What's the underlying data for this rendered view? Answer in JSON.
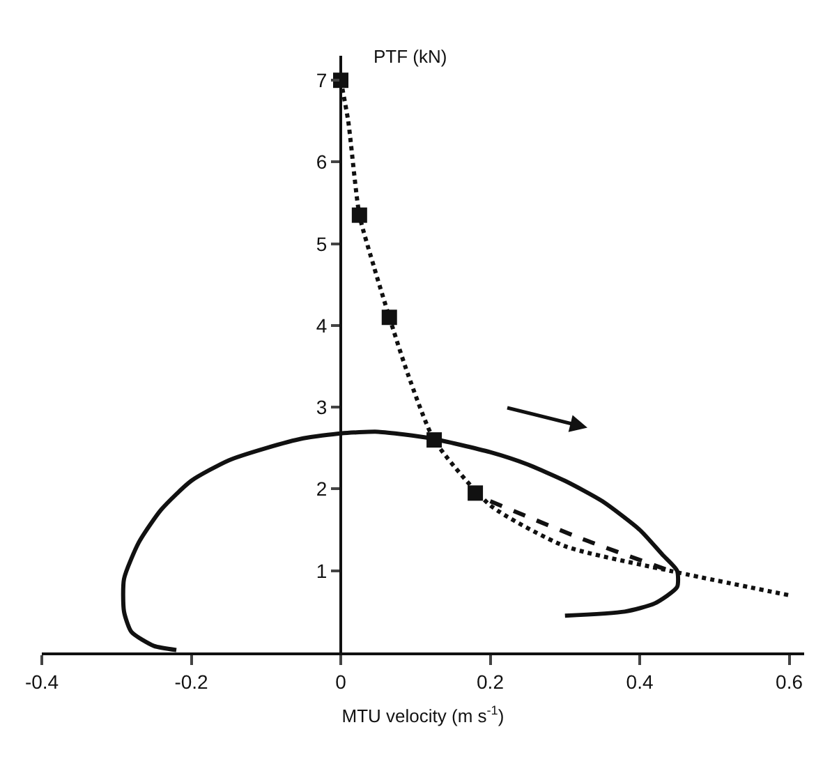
{
  "chart_data": {
    "type": "line",
    "xlabel": "MTU velocity (m s$^{-1}$)",
    "ylabel": "PTF (kN)",
    "xlim": [
      -0.4,
      0.62
    ],
    "ylim": [
      0,
      7.3
    ],
    "xticks": [
      -0.4,
      -0.2,
      0,
      0.2,
      0.4,
      0.6
    ],
    "yticks": [
      1,
      2,
      3,
      4,
      5,
      6,
      7
    ],
    "grid": false,
    "series": [
      {
        "color": "#111111",
        "line_style": "solid",
        "marker": "none",
        "x": [
          0.3,
          0.38,
          0.42,
          0.45,
          0.45,
          0.43,
          0.4,
          0.35,
          0.3,
          0.25,
          0.2,
          0.12,
          0.05,
          0,
          -0.05,
          -0.1,
          -0.15,
          -0.2,
          -0.24,
          -0.27,
          -0.29,
          -0.29,
          -0.28,
          -0.25,
          -0.22
        ],
        "values": [
          0.45,
          0.5,
          0.6,
          0.8,
          1.0,
          1.2,
          1.5,
          1.85,
          2.1,
          2.3,
          2.45,
          2.62,
          2.7,
          2.68,
          2.62,
          2.5,
          2.35,
          2.1,
          1.75,
          1.35,
          0.9,
          0.5,
          0.25,
          0.08,
          0.03
        ]
      },
      {
        "color": "#111111",
        "line_style": "dotted",
        "marker": "none",
        "x": [
          0,
          0.01,
          0.025,
          0.045,
          0.065,
          0.09,
          0.125,
          0.2,
          0.3,
          0.44,
          0.6
        ],
        "values": [
          7,
          6.5,
          5.35,
          4.7,
          4.1,
          3.4,
          2.6,
          1.8,
          1.3,
          1.0,
          0.7
        ]
      },
      {
        "color": "#111111",
        "line_style": "dashed",
        "marker": "none",
        "x": [
          0.2,
          0.32,
          0.44
        ],
        "values": [
          1.85,
          1.4,
          1.0
        ]
      },
      {
        "type": "scatter",
        "color": "#111111",
        "marker": "square",
        "x": [
          0,
          0.025,
          0.065,
          0.125,
          0.18
        ],
        "values": [
          7,
          5.35,
          4.1,
          2.6,
          1.95
        ]
      }
    ]
  }
}
